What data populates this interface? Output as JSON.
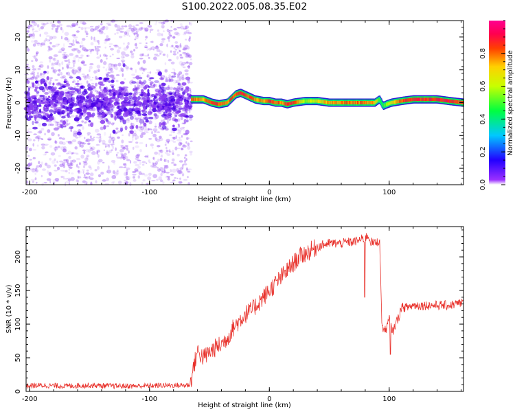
{
  "title": "S100.2022.005.08.35.E02",
  "colors": {
    "snr_line": "#e8302a",
    "spectrogram_scatter": "#8a3cf0",
    "track_edge": "#2b1dd6"
  },
  "chart_data": [
    {
      "type": "heatmap",
      "xlabel": "Height of straight line (km)",
      "ylabel": "Frequency (Hz)",
      "xlim": [
        -203,
        162
      ],
      "ylim": [
        -25,
        25
      ],
      "x_ticks": [
        -200,
        -100,
        0,
        100
      ],
      "y_ticks": [
        -20,
        -10,
        0,
        10,
        20
      ],
      "grid": false,
      "colorbar": {
        "label": "Normalized spectral amplitude",
        "range": [
          0,
          1
        ],
        "ticks": [
          0.0,
          0.2,
          0.4,
          0.6,
          0.8
        ],
        "colormap": "rainbow (violet → blue → cyan → green → yellow → orange → red → magenta)"
      },
      "noise_region_x": [
        -203,
        -65
      ],
      "noise_center_band_hz": [
        -5,
        5
      ],
      "track": {
        "description": "Narrow high-amplitude Doppler ridge for heights above about -65 km",
        "x": [
          -65,
          -55,
          -48,
          -42,
          -35,
          -28,
          -24,
          -18,
          -12,
          -5,
          0,
          5,
          10,
          15,
          20,
          30,
          40,
          50,
          60,
          70,
          80,
          88,
          92,
          95,
          98,
          102,
          110,
          120,
          130,
          140,
          150,
          162
        ],
        "freq_hz": [
          1,
          1,
          0,
          -0.5,
          0,
          2.5,
          3,
          2,
          1,
          0.5,
          0.5,
          0,
          0,
          -0.5,
          0,
          0.5,
          0.5,
          0,
          0,
          0,
          0,
          0,
          1,
          -1,
          -0.5,
          0,
          0.5,
          1,
          1,
          1,
          0.5,
          0
        ],
        "amplitude": [
          0.9,
          0.8,
          0.9,
          0.9,
          0.85,
          0.9,
          0.95,
          0.9,
          0.85,
          0.8,
          0.9,
          0.9,
          0.85,
          0.9,
          0.9,
          0.6,
          0.7,
          0.8,
          0.85,
          0.85,
          0.85,
          0.8,
          0.5,
          0.5,
          0.6,
          0.7,
          0.9,
          0.95,
          0.95,
          0.95,
          0.95,
          0.9
        ]
      }
    },
    {
      "type": "line",
      "xlabel": "Height of straight line (km)",
      "ylabel": "SNR (10 * v/v)",
      "xlim": [
        -203,
        162
      ],
      "ylim": [
        0,
        245
      ],
      "x_ticks": [
        -200,
        -100,
        0,
        100
      ],
      "y_ticks": [
        0,
        50,
        100,
        150,
        200
      ],
      "grid": false,
      "series": [
        {
          "x": [
            -203,
            -190,
            -170,
            -150,
            -130,
            -110,
            -90,
            -70,
            -66,
            -64,
            -60,
            -55,
            -50,
            -45,
            -40,
            -35,
            -30,
            -25,
            -20,
            -15,
            -10,
            -5,
            0,
            5,
            10,
            15,
            20,
            25,
            30,
            35,
            40,
            45,
            50,
            55,
            60,
            65,
            70,
            75,
            80,
            82,
            85,
            88,
            90,
            92,
            94,
            97,
            100,
            103,
            106,
            108,
            110,
            115,
            120,
            130,
            140,
            150,
            162
          ],
          "values": [
            8,
            9,
            8,
            9,
            8,
            8,
            9,
            9,
            10,
            30,
            60,
            50,
            58,
            65,
            70,
            80,
            95,
            105,
            115,
            120,
            130,
            140,
            150,
            160,
            170,
            180,
            190,
            200,
            205,
            210,
            215,
            218,
            220,
            220,
            220,
            222,
            222,
            225,
            228,
            232,
            222,
            220,
            222,
            225,
            95,
            90,
            108,
            88,
            104,
            110,
            125,
            125,
            128,
            128,
            128,
            128,
            132
          ]
        }
      ]
    }
  ]
}
